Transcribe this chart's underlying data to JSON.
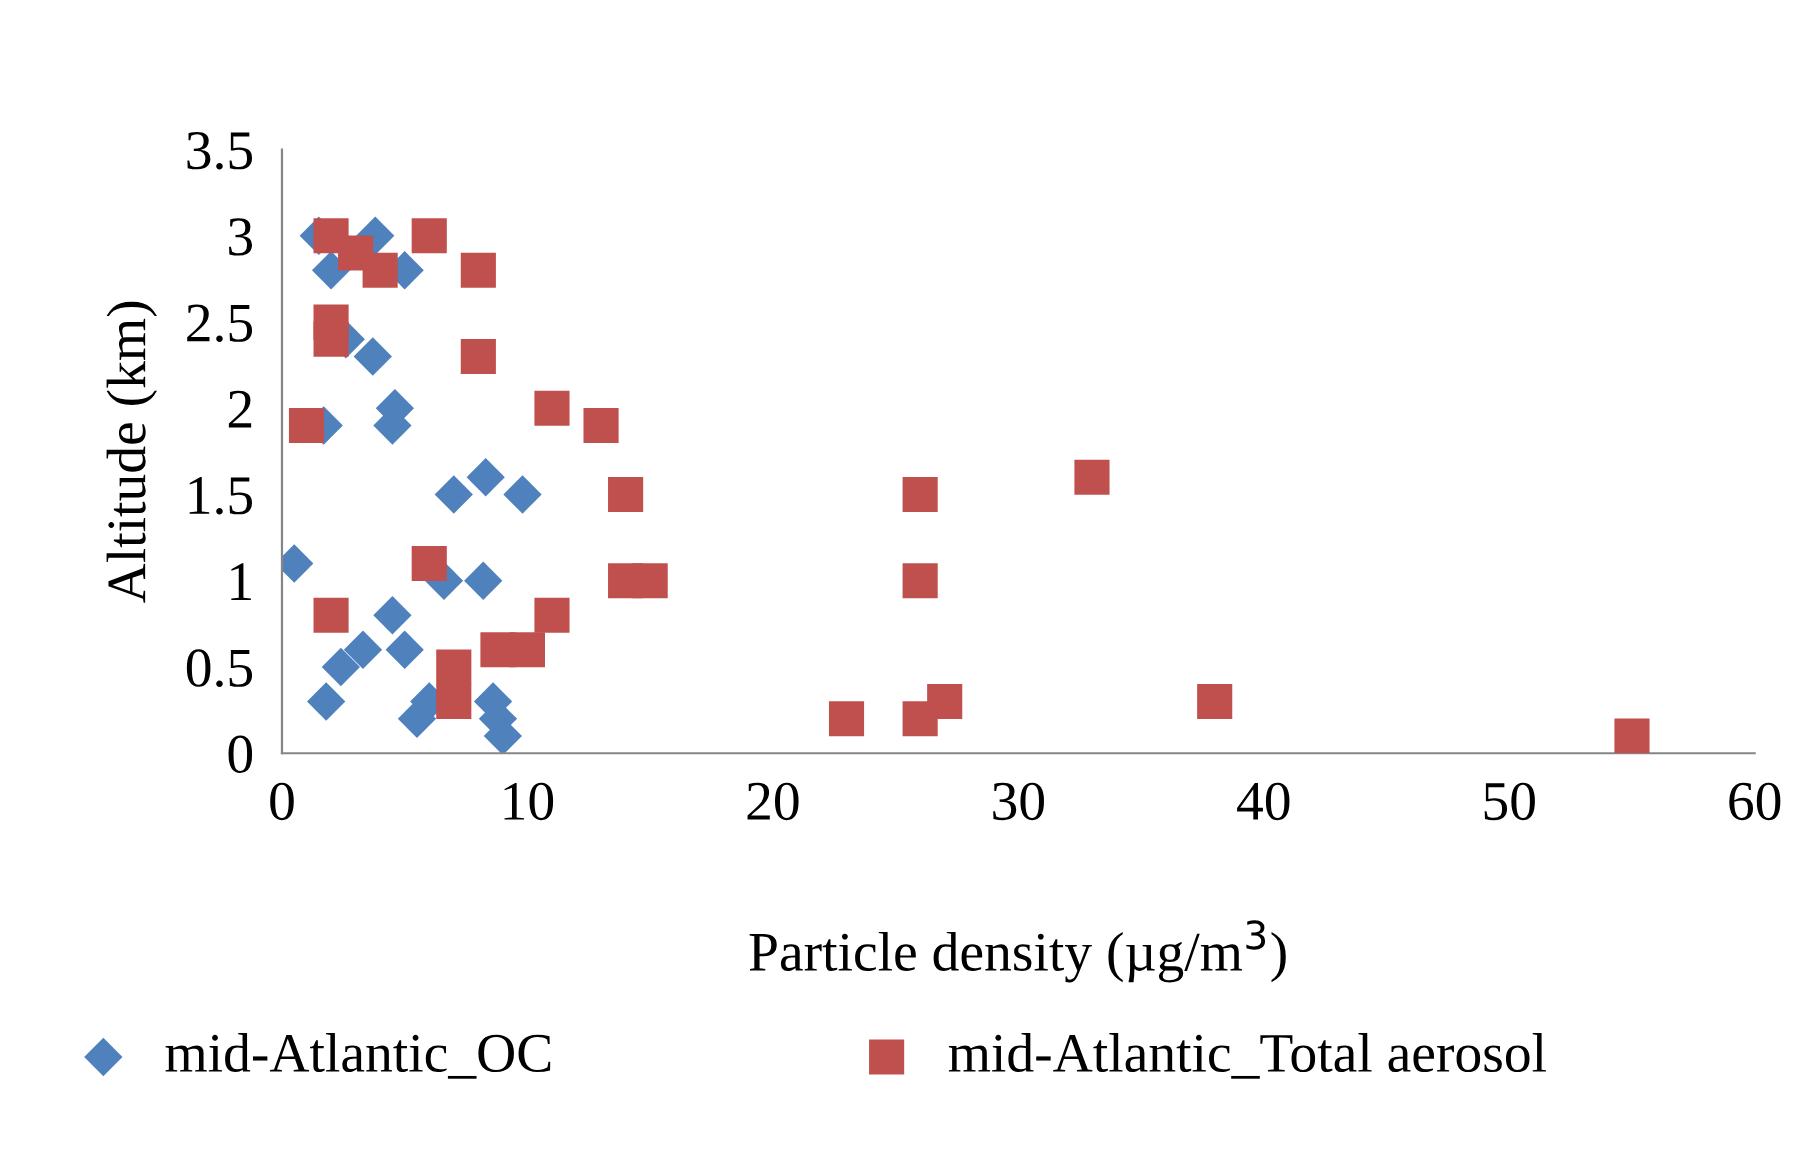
{
  "chart_data": {
    "type": "scatter",
    "xlabel": "Particle density (µg/m$^{3}$)",
    "ylabel": "Altitude (km)",
    "xlim": [
      0,
      60
    ],
    "xticks": [
      0,
      10,
      20,
      30,
      40,
      50,
      60
    ],
    "ylim": [
      0,
      3.5
    ],
    "yticks": [
      0,
      0.5,
      1,
      1.5,
      2,
      2.5,
      3,
      3.5
    ],
    "grid": false,
    "legend": "bottom",
    "series": [
      {
        "name": "mid-Atlantic_OC",
        "color": "#4f81bd",
        "marker": "diamond",
        "x": [
          1.5,
          3.8,
          2.0,
          5.0,
          2.6,
          3.7,
          4.6,
          4.5,
          1.7,
          7.0,
          8.3,
          9.8,
          0.5,
          6.6,
          8.2,
          4.5,
          3.3,
          5.0,
          2.4,
          1.8,
          6.0,
          5.5,
          8.6,
          8.8,
          9.0
        ],
        "values": [
          3.0,
          3.0,
          2.8,
          2.8,
          2.4,
          2.3,
          2.0,
          1.9,
          1.9,
          1.5,
          1.6,
          1.5,
          1.1,
          1.0,
          1.0,
          0.8,
          0.6,
          0.6,
          0.5,
          0.3,
          0.3,
          0.2,
          0.3,
          0.2,
          0.1
        ]
      },
      {
        "name": "mid-Atlantic_Total aerosol",
        "color": "#c0504d",
        "marker": "square",
        "x": [
          2,
          3,
          6,
          4,
          8,
          2,
          2,
          8,
          11,
          13,
          1,
          14,
          26,
          33,
          6,
          14,
          15,
          26,
          2,
          11,
          8.8,
          10,
          7,
          7,
          23,
          26,
          27,
          38,
          55
        ],
        "values": [
          3.0,
          2.9,
          3.0,
          2.8,
          2.8,
          2.5,
          2.4,
          2.3,
          2.0,
          1.9,
          1.9,
          1.5,
          1.5,
          1.6,
          1.1,
          1.0,
          1.0,
          1.0,
          0.8,
          0.8,
          0.6,
          0.6,
          0.5,
          0.3,
          0.2,
          0.2,
          0.3,
          0.3,
          0.1
        ]
      }
    ]
  }
}
